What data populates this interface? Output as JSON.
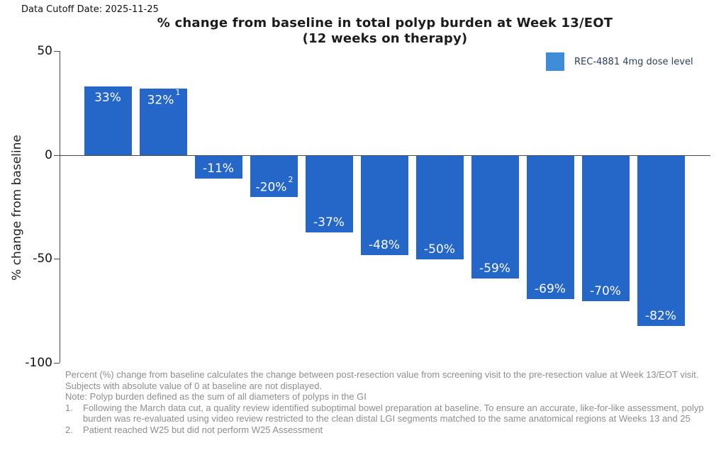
{
  "header": {
    "data_cutoff": "Data Cutoff Date: 2025-11-25"
  },
  "chart_data": {
    "type": "bar",
    "title_line1": "% change from baseline in total polyp burden at Week 13/EOT",
    "title_line2": "(12 weeks on therapy)",
    "ylabel": "% change from baseline",
    "ylim": [
      -100,
      50
    ],
    "yticks": [
      50,
      0,
      -50,
      -100
    ],
    "grid": false,
    "legend": {
      "label": "REC-4881 4mg dose level",
      "position": "top-right",
      "swatch_color": "#3E8BD8"
    },
    "bar_color": "#2467C9",
    "series": [
      {
        "name": "REC-4881 4mg dose level",
        "values": [
          33,
          32,
          -11,
          -20,
          -37,
          -48,
          -50,
          -59,
          -69,
          -70,
          -82
        ],
        "labels": [
          "33%",
          "32%",
          "-11%",
          "-20%",
          "-37%",
          "-48%",
          "-50%",
          "-59%",
          "-69%",
          "-70%",
          "-82%"
        ],
        "superscripts": [
          "",
          "1",
          "",
          "2",
          "",
          "",
          "",
          "",
          "",
          "",
          ""
        ]
      }
    ]
  },
  "footnotes": {
    "paragraph": "Percent (%) change from baseline calculates the change between post-resection value from screening visit to the pre-resection value at Week 13/EOT visit. Subjects with absolute value of 0 at baseline are not displayed.",
    "note": "Note: Polyp burden defined as the sum of all diameters of polyps in the GI",
    "items": [
      {
        "num": "1.",
        "text": "Following the March data cut, a quality review identified suboptimal bowel preparation at baseline. To ensure an accurate, like-for-like assessment, polyp burden was re-evaluated using video review restricted to the clean distal LGI segments matched to the same anatomical regions at Weeks 13 and 25"
      },
      {
        "num": "2.",
        "text": "Patient reached W25 but did not perform W25 Assessment"
      }
    ]
  }
}
